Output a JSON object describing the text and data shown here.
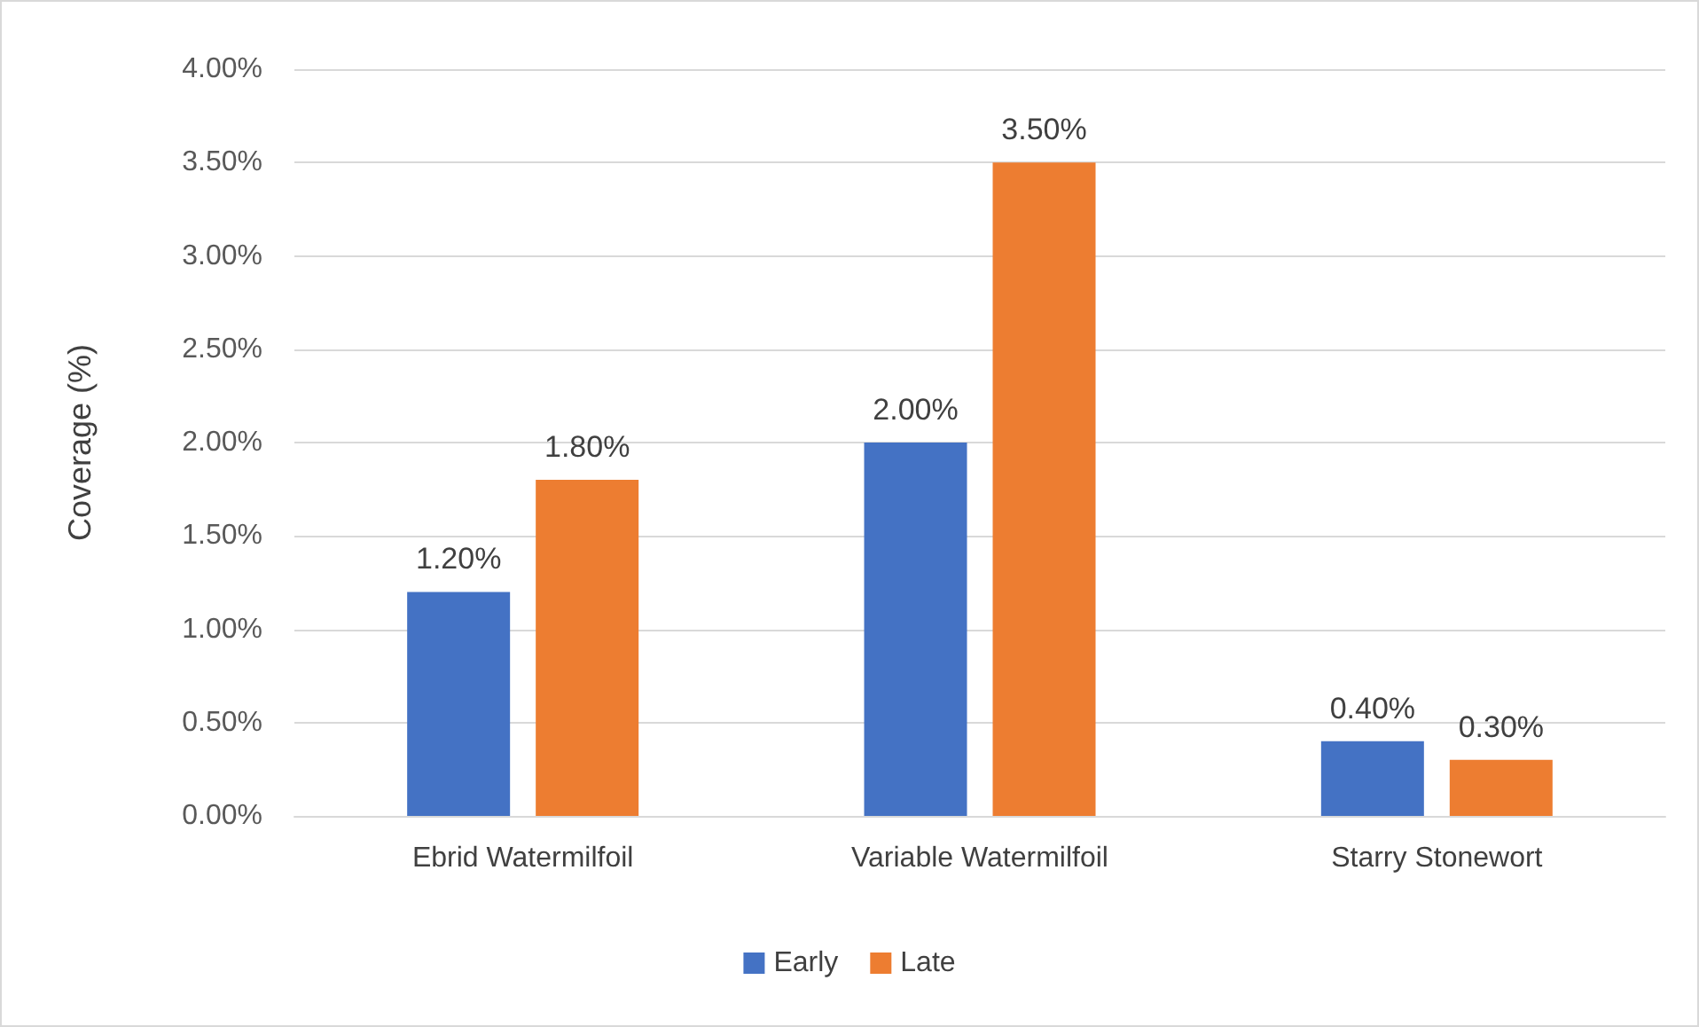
{
  "chart_data": {
    "type": "bar",
    "ylabel": "Coverage (%)",
    "categories": [
      "Ebrid Watermilfoil",
      "Variable Watermilfoil",
      "Starry Stonewort"
    ],
    "series": [
      {
        "name": "Early",
        "color": "#4472c4",
        "values": [
          1.2,
          2.0,
          0.4
        ],
        "value_labels": [
          "1.20%",
          "2.00%",
          "0.40%"
        ]
      },
      {
        "name": "Late",
        "color": "#ed7d31",
        "values": [
          1.8,
          3.5,
          0.3
        ],
        "value_labels": [
          "1.80%",
          "3.50%",
          "0.30%"
        ]
      }
    ],
    "ylim": [
      0,
      4
    ],
    "yticks": [
      {
        "value": 0,
        "label": "0.00%"
      },
      {
        "value": 0.5,
        "label": "0.50%"
      },
      {
        "value": 1,
        "label": "1.00%"
      },
      {
        "value": 1.5,
        "label": "1.50%"
      },
      {
        "value": 2,
        "label": "2.00%"
      },
      {
        "value": 2.5,
        "label": "2.50%"
      },
      {
        "value": 3,
        "label": "3.00%"
      },
      {
        "value": 3.5,
        "label": "3.50%"
      },
      {
        "value": 4,
        "label": "4.00%"
      }
    ],
    "grid": "y",
    "legend": "bottom"
  }
}
